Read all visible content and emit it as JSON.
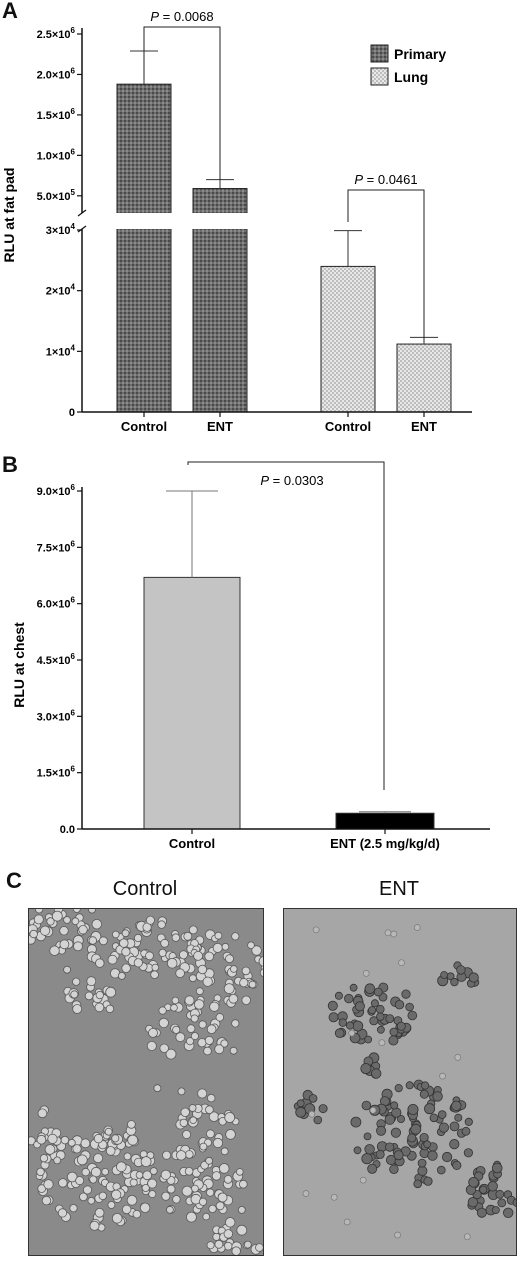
{
  "panels": {
    "a": "A",
    "b": "B",
    "c": "C"
  },
  "chart_data": [
    {
      "type": "bar",
      "panel": "A",
      "ylabel": "RLU at fat pad",
      "categories": [
        "Control",
        "ENT",
        "Control",
        "ENT"
      ],
      "groups": [
        "Primary",
        "Primary",
        "Lung",
        "Lung"
      ],
      "values": [
        1880000,
        590000,
        24000,
        11200
      ],
      "errors": [
        410000,
        110000,
        5900,
        1100
      ],
      "legend": [
        {
          "name": "Primary",
          "pattern": "dark-grid"
        },
        {
          "name": "Lung",
          "pattern": "light-check"
        }
      ],
      "legend_position": "top-right",
      "axis_break": true,
      "upper_ticks": [
        "5.0×10⁵",
        "1.0×10⁶",
        "1.5×10⁶",
        "2.0×10⁶",
        "2.5×10⁶"
      ],
      "upper_tick_values": [
        500000,
        1000000,
        1500000,
        2000000,
        2500000
      ],
      "upper_range": [
        300000,
        2500000
      ],
      "lower_ticks": [
        "0",
        "1×10⁴",
        "2×10⁴",
        "3×10⁴"
      ],
      "lower_tick_values": [
        0,
        10000,
        20000,
        30000
      ],
      "lower_range": [
        0,
        30000
      ],
      "annotations": [
        {
          "label": "P",
          "text": " = 0.0068",
          "between": [
            0,
            1
          ]
        },
        {
          "label": "P",
          "text": " = 0.0461",
          "between": [
            2,
            3
          ]
        }
      ]
    },
    {
      "type": "bar",
      "panel": "B",
      "ylabel": "RLU at chest",
      "categories": [
        "Control",
        "ENT (2.5 mg/kg/d)"
      ],
      "values": [
        6700000,
        420000
      ],
      "errors": [
        2300000,
        40000
      ],
      "colors": [
        "#c4c4c4",
        "#000000"
      ],
      "ylim": [
        0,
        9000000
      ],
      "ticks": [
        "0.0",
        "1.5×10⁶",
        "3.0×10⁶",
        "4.5×10⁶",
        "6.0×10⁶",
        "7.5×10⁶",
        "9.0×10⁶"
      ],
      "tick_values": [
        0,
        1500000,
        3000000,
        4500000,
        6000000,
        7500000,
        9000000
      ],
      "annotations": [
        {
          "label": "P",
          "text": " = 0.0303",
          "between": [
            0,
            1
          ]
        }
      ]
    }
  ],
  "images": {
    "left_title": "Control",
    "right_title": "ENT"
  }
}
